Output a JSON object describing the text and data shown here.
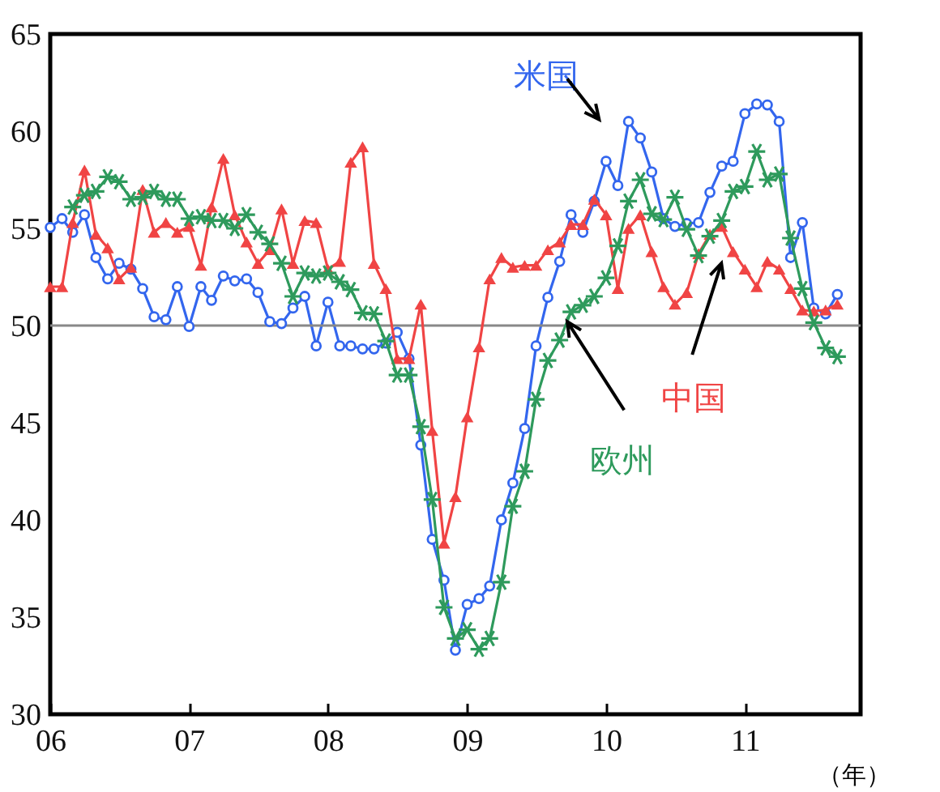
{
  "chart_data": {
    "type": "line",
    "xlabel": "（年）",
    "x": [
      "2006-01",
      "2006-02",
      "2006-03",
      "2006-04",
      "2006-05",
      "2006-06",
      "2006-07",
      "2006-08",
      "2006-09",
      "2006-10",
      "2006-11",
      "2006-12",
      "2007-01",
      "2007-02",
      "2007-03",
      "2007-04",
      "2007-05",
      "2007-06",
      "2007-07",
      "2007-08",
      "2007-09",
      "2007-10",
      "2007-11",
      "2007-12",
      "2008-01",
      "2008-02",
      "2008-03",
      "2008-04",
      "2008-05",
      "2008-06",
      "2008-07",
      "2008-08",
      "2008-09",
      "2008-10",
      "2008-11",
      "2008-12",
      "2009-01",
      "2009-02",
      "2009-03",
      "2009-04",
      "2009-05",
      "2009-06",
      "2009-07",
      "2009-08",
      "2009-09",
      "2009-10",
      "2009-11",
      "2009-12",
      "2010-01",
      "2010-02",
      "2010-03",
      "2010-04",
      "2010-05",
      "2010-06",
      "2010-07",
      "2010-08",
      "2010-09",
      "2010-10",
      "2010-11",
      "2010-12",
      "2011-01",
      "2011-02",
      "2011-03",
      "2011-04",
      "2011-05",
      "2011-06",
      "2011-07",
      "2011-08",
      "2011-09"
    ],
    "series": [
      {
        "name": "米国",
        "color": "#3366ee",
        "marker": "circle",
        "values": [
          55.05,
          55.5,
          54.8,
          55.7,
          53.5,
          52.4,
          53.2,
          52.9,
          51.9,
          50.45,
          50.3,
          52.0,
          49.95,
          52.0,
          51.3,
          52.55,
          52.3,
          52.4,
          51.7,
          50.2,
          50.1,
          50.9,
          51.5,
          48.95,
          51.2,
          48.95,
          48.95,
          48.8,
          48.8,
          49.1,
          49.65,
          48.3,
          43.85,
          39.0,
          36.9,
          33.3,
          35.65,
          35.95,
          36.6,
          40.0,
          41.9,
          44.7,
          48.95,
          51.45,
          53.3,
          55.7,
          54.8,
          56.4,
          58.45,
          57.2,
          60.5,
          59.65,
          57.9,
          55.5,
          55.1,
          55.25,
          55.3,
          56.85,
          58.2,
          58.45,
          60.9,
          61.4,
          61.35,
          60.5,
          53.5,
          55.3,
          50.9,
          50.6,
          51.6
        ]
      },
      {
        "name": "中国",
        "color": "#f04444",
        "marker": "triangle",
        "values": [
          52.0,
          52.0,
          55.3,
          58.0,
          54.7,
          54.0,
          52.4,
          53.0,
          57.0,
          54.8,
          55.3,
          54.8,
          55.1,
          53.1,
          56.1,
          58.6,
          55.7,
          54.3,
          53.2,
          53.9,
          56.0,
          53.2,
          55.4,
          55.3,
          52.9,
          53.3,
          58.4,
          59.2,
          53.2,
          51.9,
          48.3,
          48.3,
          51.1,
          44.6,
          38.8,
          41.2,
          45.3,
          48.9,
          52.4,
          53.5,
          53.0,
          53.1,
          53.1,
          53.9,
          54.3,
          55.2,
          55.2,
          56.5,
          55.7,
          51.9,
          55.0,
          55.7,
          53.8,
          52.0,
          51.1,
          51.7,
          53.7,
          54.7,
          55.1,
          53.8,
          52.9,
          52.0,
          53.3,
          52.9,
          51.9,
          50.8,
          50.75,
          50.8,
          51.1
        ]
      },
      {
        "name": "欧州",
        "color": "#2e9a5c",
        "marker": "cross",
        "values": [
          null,
          null,
          56.1,
          56.7,
          56.9,
          57.65,
          57.4,
          56.5,
          56.6,
          56.9,
          56.5,
          56.5,
          55.5,
          55.6,
          55.4,
          55.4,
          55.0,
          55.7,
          54.8,
          54.2,
          53.2,
          51.5,
          52.7,
          52.55,
          52.7,
          52.25,
          51.85,
          50.65,
          50.6,
          49.2,
          47.45,
          47.45,
          44.8,
          41.05,
          35.5,
          33.9,
          34.35,
          33.35,
          33.9,
          36.8,
          40.7,
          42.5,
          46.2,
          48.2,
          49.25,
          50.7,
          51.05,
          51.5,
          52.45,
          54.1,
          56.4,
          57.5,
          55.75,
          55.45,
          56.6,
          54.95,
          53.6,
          54.6,
          55.4,
          56.9,
          57.15,
          58.95,
          57.5,
          57.8,
          54.5,
          51.9,
          50.15,
          48.85,
          48.4
        ]
      }
    ],
    "xlim": [
      "2006-01",
      "2011-11"
    ],
    "xticks": [
      {
        "value": "2006",
        "label": "06"
      },
      {
        "value": "2007",
        "label": "07"
      },
      {
        "value": "2008",
        "label": "08"
      },
      {
        "value": "2009",
        "label": "09"
      },
      {
        "value": "2010",
        "label": "10"
      },
      {
        "value": "2011",
        "label": "11"
      }
    ],
    "ylim": [
      30,
      65
    ],
    "yticks": [
      30,
      35,
      40,
      45,
      50,
      55,
      60,
      65
    ],
    "ref_lines": [
      {
        "axis": "y",
        "value": 50,
        "color": "#888888"
      }
    ],
    "grid": false,
    "legend": false
  }
}
